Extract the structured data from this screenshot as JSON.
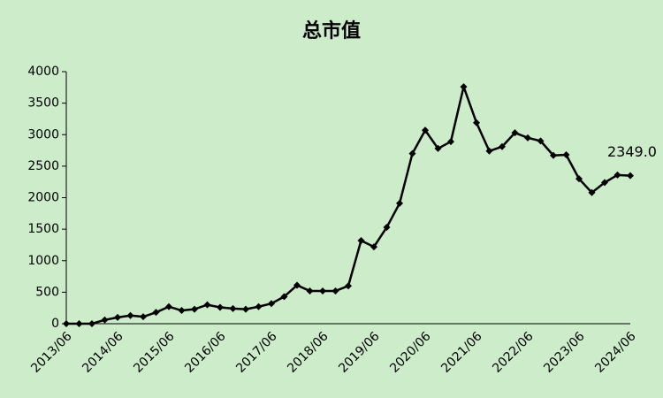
{
  "chart_data": {
    "type": "line",
    "title": "总市值",
    "categories": [
      "2013/06",
      null,
      null,
      null,
      "2014/06",
      null,
      null,
      null,
      "2015/06",
      null,
      null,
      null,
      "2016/06",
      null,
      null,
      null,
      "2017/06",
      null,
      null,
      null,
      "2018/06",
      null,
      null,
      null,
      "2019/06",
      null,
      null,
      null,
      "2020/06",
      null,
      null,
      null,
      "2021/06",
      null,
      null,
      null,
      "2022/06",
      null,
      null,
      null,
      "2023/06",
      null,
      null,
      null,
      "2024/06"
    ],
    "values": [
      0,
      0,
      0,
      60,
      100,
      130,
      110,
      180,
      270,
      210,
      230,
      300,
      260,
      240,
      230,
      270,
      320,
      430,
      610,
      520,
      520,
      520,
      600,
      1320,
      1220,
      1530,
      1910,
      2700,
      3070,
      2780,
      2890,
      3760,
      3190,
      2740,
      2810,
      3030,
      2950,
      2900,
      2670,
      2680,
      2300,
      2080,
      2240,
      2360,
      2349
    ],
    "value_labels": [
      null,
      null,
      null,
      null,
      null,
      null,
      null,
      null,
      null,
      null,
      null,
      null,
      null,
      null,
      null,
      null,
      null,
      null,
      null,
      null,
      null,
      null,
      null,
      null,
      null,
      null,
      null,
      null,
      null,
      null,
      null,
      null,
      null,
      null,
      null,
      null,
      null,
      null,
      null,
      null,
      null,
      null,
      null,
      null,
      "2349.0"
    ],
    "color": "#000000",
    "ylim": [
      0,
      4000
    ],
    "yticks": [
      0,
      500,
      1000,
      1500,
      2000,
      2500,
      3000,
      3500,
      4000
    ]
  }
}
